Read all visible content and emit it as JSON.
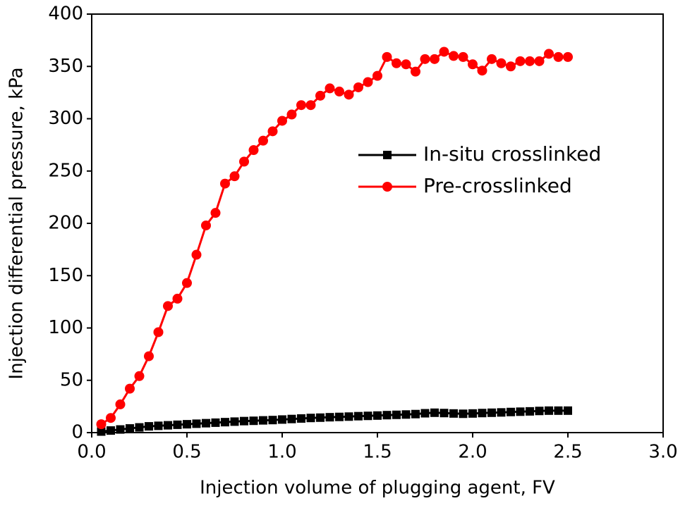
{
  "chart_data": {
    "type": "line",
    "x_label": "Injection volume of plugging agent, FV",
    "y_label": "Injection differential pressure, kPa",
    "xlim": [
      0,
      3
    ],
    "ylim": [
      0,
      400
    ],
    "xticks": [
      {
        "value": 0,
        "label": "0.0"
      },
      0.5,
      {
        "value": 1,
        "label": "1.0"
      },
      1.5,
      {
        "value": 2,
        "label": "2.0"
      },
      2.5,
      {
        "value": 3,
        "label": "3.0"
      }
    ],
    "yticks": [
      0,
      50,
      100,
      150,
      200,
      250,
      300,
      350,
      400
    ],
    "legend": "upper right",
    "x": [
      0.05,
      0.1,
      0.15,
      0.2,
      0.25,
      0.3,
      0.35,
      0.4,
      0.45,
      0.5,
      0.55,
      0.6,
      0.65,
      0.7,
      0.75,
      0.8,
      0.85,
      0.9,
      0.95,
      1.0,
      1.05,
      1.1,
      1.15,
      1.2,
      1.25,
      1.3,
      1.35,
      1.4,
      1.45,
      1.5,
      1.55,
      1.6,
      1.65,
      1.7,
      1.75,
      1.8,
      1.85,
      1.9,
      1.95,
      2.0,
      2.05,
      2.1,
      2.15,
      2.2,
      2.25,
      2.3,
      2.35,
      2.4,
      2.45,
      2.5
    ],
    "series": [
      {
        "name": "In-situ crosslinked",
        "color": "#000000",
        "marker": "square",
        "values": [
          1,
          2,
          3,
          4,
          5,
          6,
          6.5,
          7,
          7.5,
          8,
          8.5,
          9,
          9.5,
          10,
          10.5,
          11,
          11.3,
          11.7,
          12,
          12.5,
          13,
          13.5,
          14,
          14.3,
          14.7,
          15,
          15.3,
          15.7,
          16,
          16.3,
          16.7,
          17,
          17.3,
          17.7,
          18.5,
          19,
          18.7,
          18.3,
          18,
          18.3,
          18.7,
          19,
          19.3,
          19.7,
          20,
          20.3,
          20.7,
          21,
          21,
          21
        ]
      },
      {
        "name": "Pre-crosslinked",
        "color": "#ff0000",
        "marker": "circle",
        "values": [
          8,
          14,
          27,
          42,
          54,
          73,
          96,
          121,
          128,
          143,
          170,
          198,
          210,
          238,
          245,
          259,
          270,
          279,
          288,
          298,
          304,
          313,
          313,
          322,
          329,
          326,
          323,
          330,
          335,
          341,
          359,
          353,
          352,
          345,
          357,
          357,
          364,
          360,
          359,
          352,
          346,
          357,
          353,
          350,
          355,
          355,
          355,
          362,
          359,
          359
        ]
      }
    ]
  }
}
